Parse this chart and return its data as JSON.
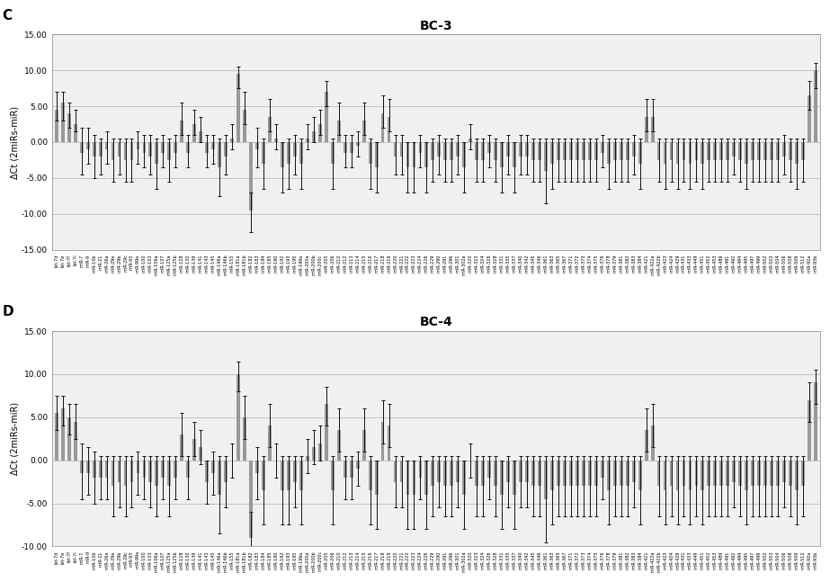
{
  "title_C": "BC-3",
  "title_D": "BC-4",
  "label_C": "C",
  "label_D": "D",
  "ylabel": "ΔCt (2miRs-miR)",
  "ylim_C": [
    -15,
    15
  ],
  "ylim_D": [
    -10,
    15
  ],
  "yticks_C": [
    -15.0,
    -10.0,
    -5.0,
    0.0,
    5.0,
    10.0,
    15.0
  ],
  "yticks_D": [
    -10.0,
    -5.0,
    0.0,
    5.0,
    10.0,
    15.0
  ],
  "categories": [
    "let-7d",
    "let-7e",
    "let-7f",
    "let-7i",
    "miR-7",
    "miR-9",
    "miR-10b",
    "miR-21",
    "miR-26a",
    "miR-29a",
    "miR-29b",
    "miR-29c",
    "miR-93",
    "miR-99a",
    "miR-100",
    "miR-103",
    "miR-106a",
    "miR-107",
    "miR-125a",
    "miR-125b",
    "miR-128",
    "miR-130",
    "miR-139",
    "miR-141",
    "miR-143",
    "miR-145",
    "miR-146a",
    "miR-146b",
    "miR-155",
    "miR-181a",
    "miR-181b",
    "miR-182",
    "miR-183",
    "miR-184",
    "miR-185",
    "miR-190",
    "miR-192",
    "miR-193",
    "miR-195",
    "miR-199a",
    "miR-200a",
    "miR-200b",
    "miR-200c",
    "miR-205",
    "miR-206",
    "miR-210",
    "miR-212",
    "miR-213",
    "miR-214",
    "miR-215",
    "miR-216",
    "miR-217",
    "miR-218",
    "miR-219",
    "miR-220",
    "miR-221",
    "miR-222",
    "miR-223",
    "miR-224",
    "miR-226",
    "miR-229",
    "miR-290",
    "miR-291",
    "miR-296",
    "miR-301",
    "miR-302a",
    "miR-320",
    "miR-323",
    "miR-324",
    "miR-326",
    "miR-328",
    "miR-331",
    "miR-335",
    "miR-337",
    "miR-340",
    "miR-342",
    "miR-345",
    "miR-346",
    "miR-361",
    "miR-363",
    "miR-365",
    "miR-367",
    "miR-371",
    "miR-372",
    "miR-373",
    "miR-374",
    "miR-375",
    "miR-376",
    "miR-378",
    "miR-379",
    "miR-381",
    "miR-382",
    "miR-383",
    "miR-384",
    "miR-421",
    "miR-422a",
    "miR-422b",
    "miR-423",
    "miR-424",
    "miR-429",
    "miR-431",
    "miR-433",
    "miR-449",
    "miR-451",
    "miR-452",
    "miR-453",
    "miR-489",
    "miR-491",
    "miR-492",
    "miR-494",
    "miR-495",
    "miR-497",
    "miR-499",
    "miR-502",
    "miR-503",
    "miR-504",
    "miR-506",
    "miR-508",
    "miR-509",
    "miR-512",
    "miR-92a",
    "miR-93b"
  ],
  "bc3_values": [
    4.5,
    5.5,
    4.0,
    2.5,
    -1.5,
    -1.0,
    -2.0,
    -2.0,
    -1.0,
    -2.5,
    -2.0,
    -2.5,
    -2.5,
    -1.0,
    -1.5,
    -2.0,
    -3.0,
    -1.5,
    -2.5,
    -1.5,
    3.0,
    -1.5,
    2.5,
    1.5,
    -1.5,
    -1.0,
    -3.5,
    -2.0,
    0.5,
    9.5,
    4.5,
    -9.5,
    -1.0,
    -3.0,
    3.5,
    0.5,
    -3.5,
    -3.0,
    -2.0,
    -3.0,
    0.5,
    1.5,
    2.5,
    7.0,
    -3.0,
    3.0,
    -1.5,
    -1.5,
    -0.5,
    3.0,
    -3.0,
    -3.5,
    4.0,
    3.5,
    -2.0,
    -2.0,
    -3.5,
    -3.5,
    -1.5,
    -3.5,
    -2.5,
    -2.0,
    -2.5,
    -2.5,
    -2.0,
    -3.5,
    0.5,
    -2.5,
    -2.5,
    -1.5,
    -2.5,
    -3.5,
    -2.0,
    -3.5,
    -2.0,
    -2.0,
    -2.5,
    -2.5,
    -4.0,
    -3.0,
    -2.5,
    -2.5,
    -2.5,
    -2.5,
    -2.5,
    -2.5,
    -2.5,
    -1.5,
    -3.0,
    -2.5,
    -2.5,
    -2.5,
    -2.0,
    -3.0,
    3.5,
    3.5,
    -2.5,
    -3.0,
    -2.5,
    -3.0,
    -2.5,
    -3.0,
    -2.5,
    -3.0,
    -2.5,
    -2.5,
    -2.5,
    -2.5,
    -2.0,
    -2.5,
    -3.0,
    -2.5,
    -2.5,
    -2.5,
    -2.5,
    -2.5,
    -2.0,
    -2.5,
    -3.0,
    -2.5,
    6.5,
    10.0
  ],
  "bc3_err_low": [
    1.5,
    2.5,
    2.0,
    1.0,
    3.0,
    2.0,
    3.0,
    2.5,
    2.0,
    3.0,
    2.5,
    3.0,
    3.0,
    2.0,
    2.0,
    2.5,
    3.5,
    2.0,
    3.0,
    2.0,
    2.0,
    2.0,
    1.5,
    1.5,
    2.0,
    2.0,
    4.0,
    2.5,
    1.5,
    2.0,
    2.0,
    3.0,
    2.5,
    3.5,
    2.0,
    1.5,
    3.5,
    3.5,
    2.5,
    3.5,
    1.5,
    1.5,
    1.5,
    2.0,
    3.5,
    2.0,
    2.0,
    2.0,
    1.5,
    2.0,
    3.5,
    3.5,
    2.0,
    2.0,
    2.5,
    2.5,
    3.5,
    3.5,
    2.0,
    3.5,
    3.0,
    2.5,
    3.0,
    3.0,
    2.5,
    3.5,
    1.5,
    3.0,
    3.0,
    2.0,
    3.0,
    3.5,
    2.5,
    3.5,
    2.5,
    2.5,
    3.0,
    3.0,
    4.5,
    3.5,
    3.0,
    3.0,
    3.0,
    3.0,
    3.0,
    3.0,
    3.0,
    2.0,
    3.5,
    3.0,
    3.0,
    3.0,
    2.5,
    3.5,
    2.0,
    2.0,
    3.0,
    3.5,
    3.0,
    3.5,
    3.0,
    3.5,
    3.0,
    3.5,
    3.0,
    3.0,
    3.0,
    3.0,
    2.5,
    3.0,
    3.5,
    3.0,
    3.0,
    3.0,
    3.0,
    3.0,
    2.5,
    3.0,
    3.5,
    3.0,
    2.0,
    2.5
  ],
  "bc3_err_high": [
    2.5,
    1.5,
    1.5,
    2.0,
    3.5,
    3.0,
    3.0,
    2.5,
    2.5,
    3.0,
    2.5,
    3.0,
    3.0,
    2.5,
    2.5,
    3.0,
    3.5,
    2.5,
    3.0,
    2.5,
    2.5,
    2.5,
    2.0,
    2.0,
    2.5,
    2.0,
    4.0,
    3.0,
    2.0,
    1.0,
    2.5,
    2.5,
    3.0,
    3.5,
    2.5,
    2.0,
    3.5,
    3.5,
    3.0,
    3.5,
    2.0,
    2.0,
    2.0,
    1.5,
    3.5,
    2.5,
    2.5,
    2.5,
    2.0,
    2.5,
    3.5,
    3.5,
    2.5,
    2.5,
    3.0,
    3.0,
    3.5,
    3.5,
    2.5,
    3.5,
    3.0,
    3.0,
    3.0,
    3.0,
    3.0,
    3.5,
    2.0,
    3.0,
    3.0,
    2.5,
    3.0,
    3.5,
    3.0,
    3.5,
    3.0,
    3.0,
    3.0,
    3.0,
    4.5,
    3.5,
    3.0,
    3.0,
    3.0,
    3.0,
    3.0,
    3.0,
    3.0,
    2.5,
    3.5,
    3.0,
    3.0,
    3.0,
    3.0,
    3.5,
    2.5,
    2.5,
    3.0,
    3.5,
    3.0,
    3.5,
    3.0,
    3.5,
    3.0,
    3.5,
    3.0,
    3.0,
    3.0,
    3.0,
    2.5,
    3.0,
    3.5,
    3.0,
    3.0,
    3.0,
    3.0,
    3.0,
    3.0,
    3.0,
    3.5,
    3.0,
    2.0,
    1.0
  ],
  "bc4_values": [
    5.5,
    6.0,
    5.0,
    4.5,
    -1.5,
    -1.5,
    -2.0,
    -2.0,
    -2.0,
    -3.0,
    -2.5,
    -3.0,
    -2.5,
    -1.5,
    -2.0,
    -2.5,
    -3.0,
    -2.0,
    -3.0,
    -2.0,
    3.0,
    -2.0,
    2.5,
    1.5,
    -2.5,
    -1.5,
    -4.0,
    -2.5,
    0.0,
    10.0,
    5.0,
    -9.0,
    -1.5,
    -3.5,
    4.0,
    0.0,
    -3.5,
    -3.5,
    -2.5,
    -3.5,
    0.5,
    1.5,
    2.0,
    6.5,
    -3.5,
    3.5,
    -2.0,
    -2.0,
    -1.0,
    3.5,
    -3.5,
    -4.0,
    4.5,
    4.0,
    -2.5,
    -2.5,
    -4.0,
    -4.0,
    -2.0,
    -4.0,
    -3.0,
    -2.5,
    -3.0,
    -3.0,
    -2.5,
    -4.0,
    0.0,
    -3.0,
    -3.0,
    -2.0,
    -3.0,
    -4.0,
    -2.5,
    -4.0,
    -2.5,
    -2.5,
    -3.0,
    -3.0,
    -4.5,
    -3.5,
    -3.0,
    -3.0,
    -3.0,
    -3.0,
    -3.0,
    -3.0,
    -3.0,
    -2.0,
    -3.5,
    -3.0,
    -3.0,
    -3.0,
    -2.5,
    -3.5,
    3.5,
    4.0,
    -3.0,
    -3.5,
    -3.0,
    -3.5,
    -3.0,
    -3.5,
    -3.0,
    -3.5,
    -3.0,
    -3.0,
    -3.0,
    -3.0,
    -2.5,
    -3.0,
    -3.5,
    -3.0,
    -3.0,
    -3.0,
    -3.0,
    -3.0,
    -2.5,
    -3.0,
    -3.5,
    -3.0,
    7.0,
    9.0
  ],
  "bc4_err_low": [
    2.0,
    2.0,
    2.0,
    2.0,
    3.0,
    2.5,
    3.0,
    2.5,
    2.5,
    3.5,
    3.0,
    3.5,
    3.0,
    2.5,
    2.5,
    3.0,
    3.5,
    2.5,
    3.5,
    2.5,
    2.5,
    2.5,
    2.0,
    2.0,
    2.5,
    2.5,
    4.5,
    3.0,
    2.0,
    2.0,
    2.5,
    3.5,
    3.0,
    4.0,
    2.5,
    2.0,
    4.0,
    4.0,
    3.0,
    4.0,
    2.0,
    2.0,
    2.0,
    2.5,
    4.0,
    2.5,
    2.5,
    2.5,
    2.0,
    2.5,
    4.0,
    4.0,
    2.5,
    2.5,
    3.0,
    3.0,
    4.0,
    4.0,
    2.5,
    4.0,
    3.5,
    3.0,
    3.5,
    3.5,
    3.0,
    4.0,
    2.0,
    3.5,
    3.5,
    2.5,
    3.5,
    4.0,
    3.0,
    4.0,
    3.0,
    3.0,
    3.5,
    3.5,
    5.0,
    4.0,
    3.5,
    3.5,
    3.5,
    3.5,
    3.5,
    3.5,
    3.5,
    2.5,
    4.0,
    3.5,
    3.5,
    3.5,
    3.0,
    4.0,
    2.5,
    2.5,
    3.5,
    4.0,
    3.5,
    4.0,
    3.5,
    4.0,
    3.5,
    4.0,
    3.5,
    3.5,
    3.5,
    3.5,
    3.0,
    3.5,
    4.0,
    3.5,
    3.5,
    3.5,
    3.5,
    3.5,
    3.0,
    3.5,
    4.0,
    3.5,
    2.5,
    2.5
  ],
  "bc4_err_high": [
    2.0,
    1.5,
    1.5,
    2.0,
    3.5,
    3.0,
    3.0,
    2.5,
    2.5,
    3.5,
    3.0,
    3.5,
    3.0,
    2.5,
    2.5,
    3.0,
    3.5,
    2.5,
    3.5,
    2.5,
    2.5,
    2.5,
    2.0,
    2.0,
    2.5,
    2.5,
    4.5,
    3.0,
    2.0,
    1.5,
    2.5,
    3.0,
    3.0,
    4.0,
    2.5,
    2.0,
    4.0,
    4.0,
    3.0,
    4.0,
    2.0,
    2.0,
    2.0,
    2.0,
    4.0,
    2.5,
    2.5,
    2.5,
    2.0,
    2.5,
    4.0,
    4.0,
    2.5,
    2.5,
    3.0,
    3.0,
    4.0,
    4.0,
    2.5,
    4.0,
    3.5,
    3.0,
    3.5,
    3.5,
    3.0,
    4.0,
    2.0,
    3.5,
    3.5,
    2.5,
    3.5,
    4.0,
    3.0,
    4.0,
    3.0,
    3.0,
    3.5,
    3.5,
    5.0,
    4.0,
    3.5,
    3.5,
    3.5,
    3.5,
    3.5,
    3.5,
    3.5,
    2.5,
    4.0,
    3.5,
    3.5,
    3.5,
    3.0,
    4.0,
    2.5,
    2.5,
    3.5,
    4.0,
    3.5,
    4.0,
    3.5,
    4.0,
    3.5,
    4.0,
    3.5,
    3.5,
    3.5,
    3.5,
    3.0,
    3.5,
    4.0,
    3.5,
    3.5,
    3.5,
    3.5,
    3.5,
    3.0,
    3.5,
    4.0,
    3.5,
    2.0,
    1.5
  ],
  "bar_color": "#999999",
  "error_color": "#111111",
  "bg_color": "#f0f0f0",
  "grid_color": "#bbbbbb",
  "bar_width": 0.55
}
